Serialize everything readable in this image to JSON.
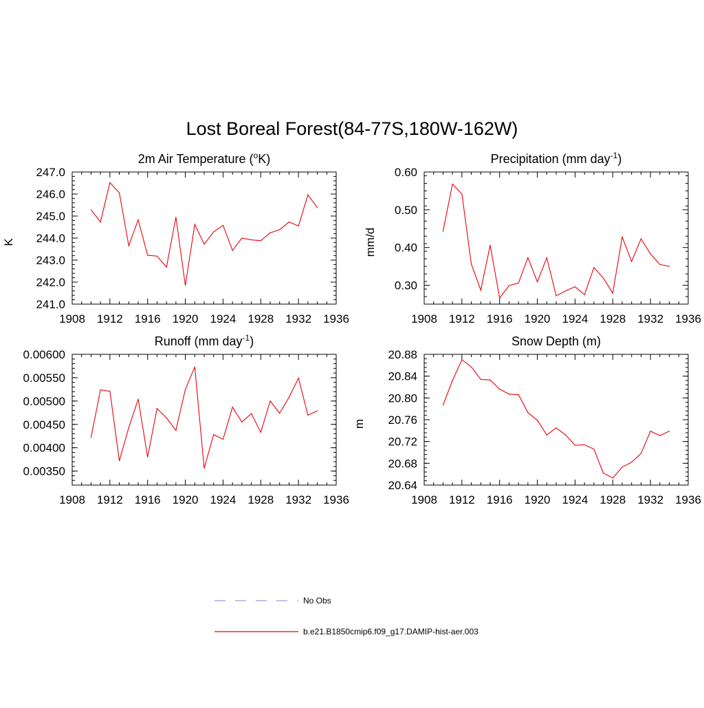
{
  "title": "Lost Boreal Forest(84-77S,180W-162W)",
  "colors": {
    "model": "#e8000b",
    "obs": "#9999ee",
    "axis": "#000000"
  },
  "legend": [
    {
      "label": "No Obs",
      "style": "dashed",
      "color": "#9999ee"
    },
    {
      "label": "b.e21.B1850cmip6.f09_g17.DAMIP-hist-aer.003",
      "style": "solid",
      "color": "#e8000b"
    }
  ],
  "chart_data": [
    {
      "type": "line",
      "title": "2m Air Temperature (",
      "title_sup": "o",
      "title_tail": "K)",
      "ylabel": "K",
      "xlim": [
        1908,
        1936
      ],
      "ylim": [
        241.0,
        247.0
      ],
      "xticks": [
        "1908",
        "1912",
        "1916",
        "1920",
        "1924",
        "1928",
        "1932",
        "1936"
      ],
      "yticks": [
        "241.0",
        "242.0",
        "243.0",
        "244.0",
        "245.0",
        "246.0",
        "247.0"
      ],
      "x": [
        1910,
        1911,
        1912,
        1913,
        1914,
        1915,
        1916,
        1917,
        1918,
        1919,
        1920,
        1921,
        1922,
        1923,
        1924,
        1925,
        1926,
        1927,
        1928,
        1929,
        1930,
        1931,
        1932,
        1933,
        1934
      ],
      "series": [
        {
          "values": [
            245.28,
            244.73,
            246.52,
            246.05,
            243.65,
            244.83,
            243.22,
            243.18,
            242.68,
            244.95,
            241.85,
            244.62,
            243.72,
            244.28,
            244.58,
            243.44,
            244.0,
            243.92,
            243.88,
            244.24,
            244.38,
            244.73,
            244.55,
            245.96,
            245.38
          ]
        }
      ]
    },
    {
      "type": "line",
      "title": "Precipitation (mm day",
      "title_sup": "-1",
      "title_tail": ")",
      "ylabel": "mm/d",
      "xlim": [
        1908,
        1936
      ],
      "ylim": [
        0.25,
        0.6
      ],
      "xticks": [
        "1908",
        "1912",
        "1916",
        "1920",
        "1924",
        "1928",
        "1932",
        "1936"
      ],
      "yticks": [
        "0.30",
        "0.40",
        "0.50",
        "0.60"
      ],
      "x": [
        1910,
        1911,
        1912,
        1913,
        1914,
        1915,
        1916,
        1917,
        1918,
        1919,
        1920,
        1921,
        1922,
        1923,
        1924,
        1925,
        1926,
        1927,
        1928,
        1929,
        1930,
        1931,
        1932,
        1933,
        1934
      ],
      "series": [
        {
          "values": [
            0.443,
            0.568,
            0.542,
            0.356,
            0.287,
            0.406,
            0.266,
            0.299,
            0.306,
            0.373,
            0.309,
            0.373,
            0.272,
            0.285,
            0.296,
            0.275,
            0.347,
            0.319,
            0.279,
            0.428,
            0.363,
            0.423,
            0.383,
            0.355,
            0.35
          ]
        }
      ]
    },
    {
      "type": "line",
      "title": "Runoff (mm day",
      "title_sup": "-1",
      "title_tail": ")",
      "ylabel": "",
      "xlim": [
        1908,
        1936
      ],
      "ylim": [
        0.0032,
        0.006
      ],
      "xticks": [
        "1908",
        "1912",
        "1916",
        "1920",
        "1924",
        "1928",
        "1932",
        "1936"
      ],
      "yticks": [
        "0.00350",
        "0.00400",
        "0.00450",
        "0.00500",
        "0.00550",
        "0.00600"
      ],
      "x": [
        1910,
        1911,
        1912,
        1913,
        1914,
        1915,
        1916,
        1917,
        1918,
        1919,
        1920,
        1921,
        1922,
        1923,
        1924,
        1925,
        1926,
        1927,
        1928,
        1929,
        1930,
        1931,
        1932,
        1933,
        1934
      ],
      "series": [
        {
          "values": [
            0.00422,
            0.00524,
            0.00521,
            0.00372,
            0.00443,
            0.00504,
            0.0038,
            0.00484,
            0.00464,
            0.00437,
            0.00525,
            0.00573,
            0.00356,
            0.00428,
            0.00418,
            0.00487,
            0.00455,
            0.00473,
            0.00433,
            0.005,
            0.00474,
            0.00508,
            0.00549,
            0.0047,
            0.00479
          ]
        }
      ]
    },
    {
      "type": "line",
      "title": "Snow Depth (m)",
      "title_sup": "",
      "title_tail": "",
      "ylabel": "m",
      "xlim": [
        1908,
        1936
      ],
      "ylim": [
        20.64,
        20.88
      ],
      "xticks": [
        "1908",
        "1912",
        "1916",
        "1920",
        "1924",
        "1928",
        "1932",
        "1936"
      ],
      "yticks": [
        "20.64",
        "20.68",
        "20.72",
        "20.76",
        "20.80",
        "20.84",
        "20.88"
      ],
      "x": [
        1910,
        1911,
        1912,
        1913,
        1914,
        1915,
        1916,
        1917,
        1918,
        1919,
        1920,
        1921,
        1922,
        1923,
        1924,
        1925,
        1926,
        1927,
        1928,
        1929,
        1930,
        1931,
        1932,
        1933,
        1934
      ],
      "series": [
        {
          "values": [
            20.787,
            20.832,
            20.87,
            20.857,
            20.834,
            20.833,
            20.816,
            20.807,
            20.806,
            20.773,
            20.759,
            20.732,
            20.745,
            20.732,
            20.713,
            20.714,
            20.706,
            20.662,
            20.653,
            20.673,
            20.682,
            20.698,
            20.739,
            20.731,
            20.739
          ]
        }
      ]
    }
  ]
}
